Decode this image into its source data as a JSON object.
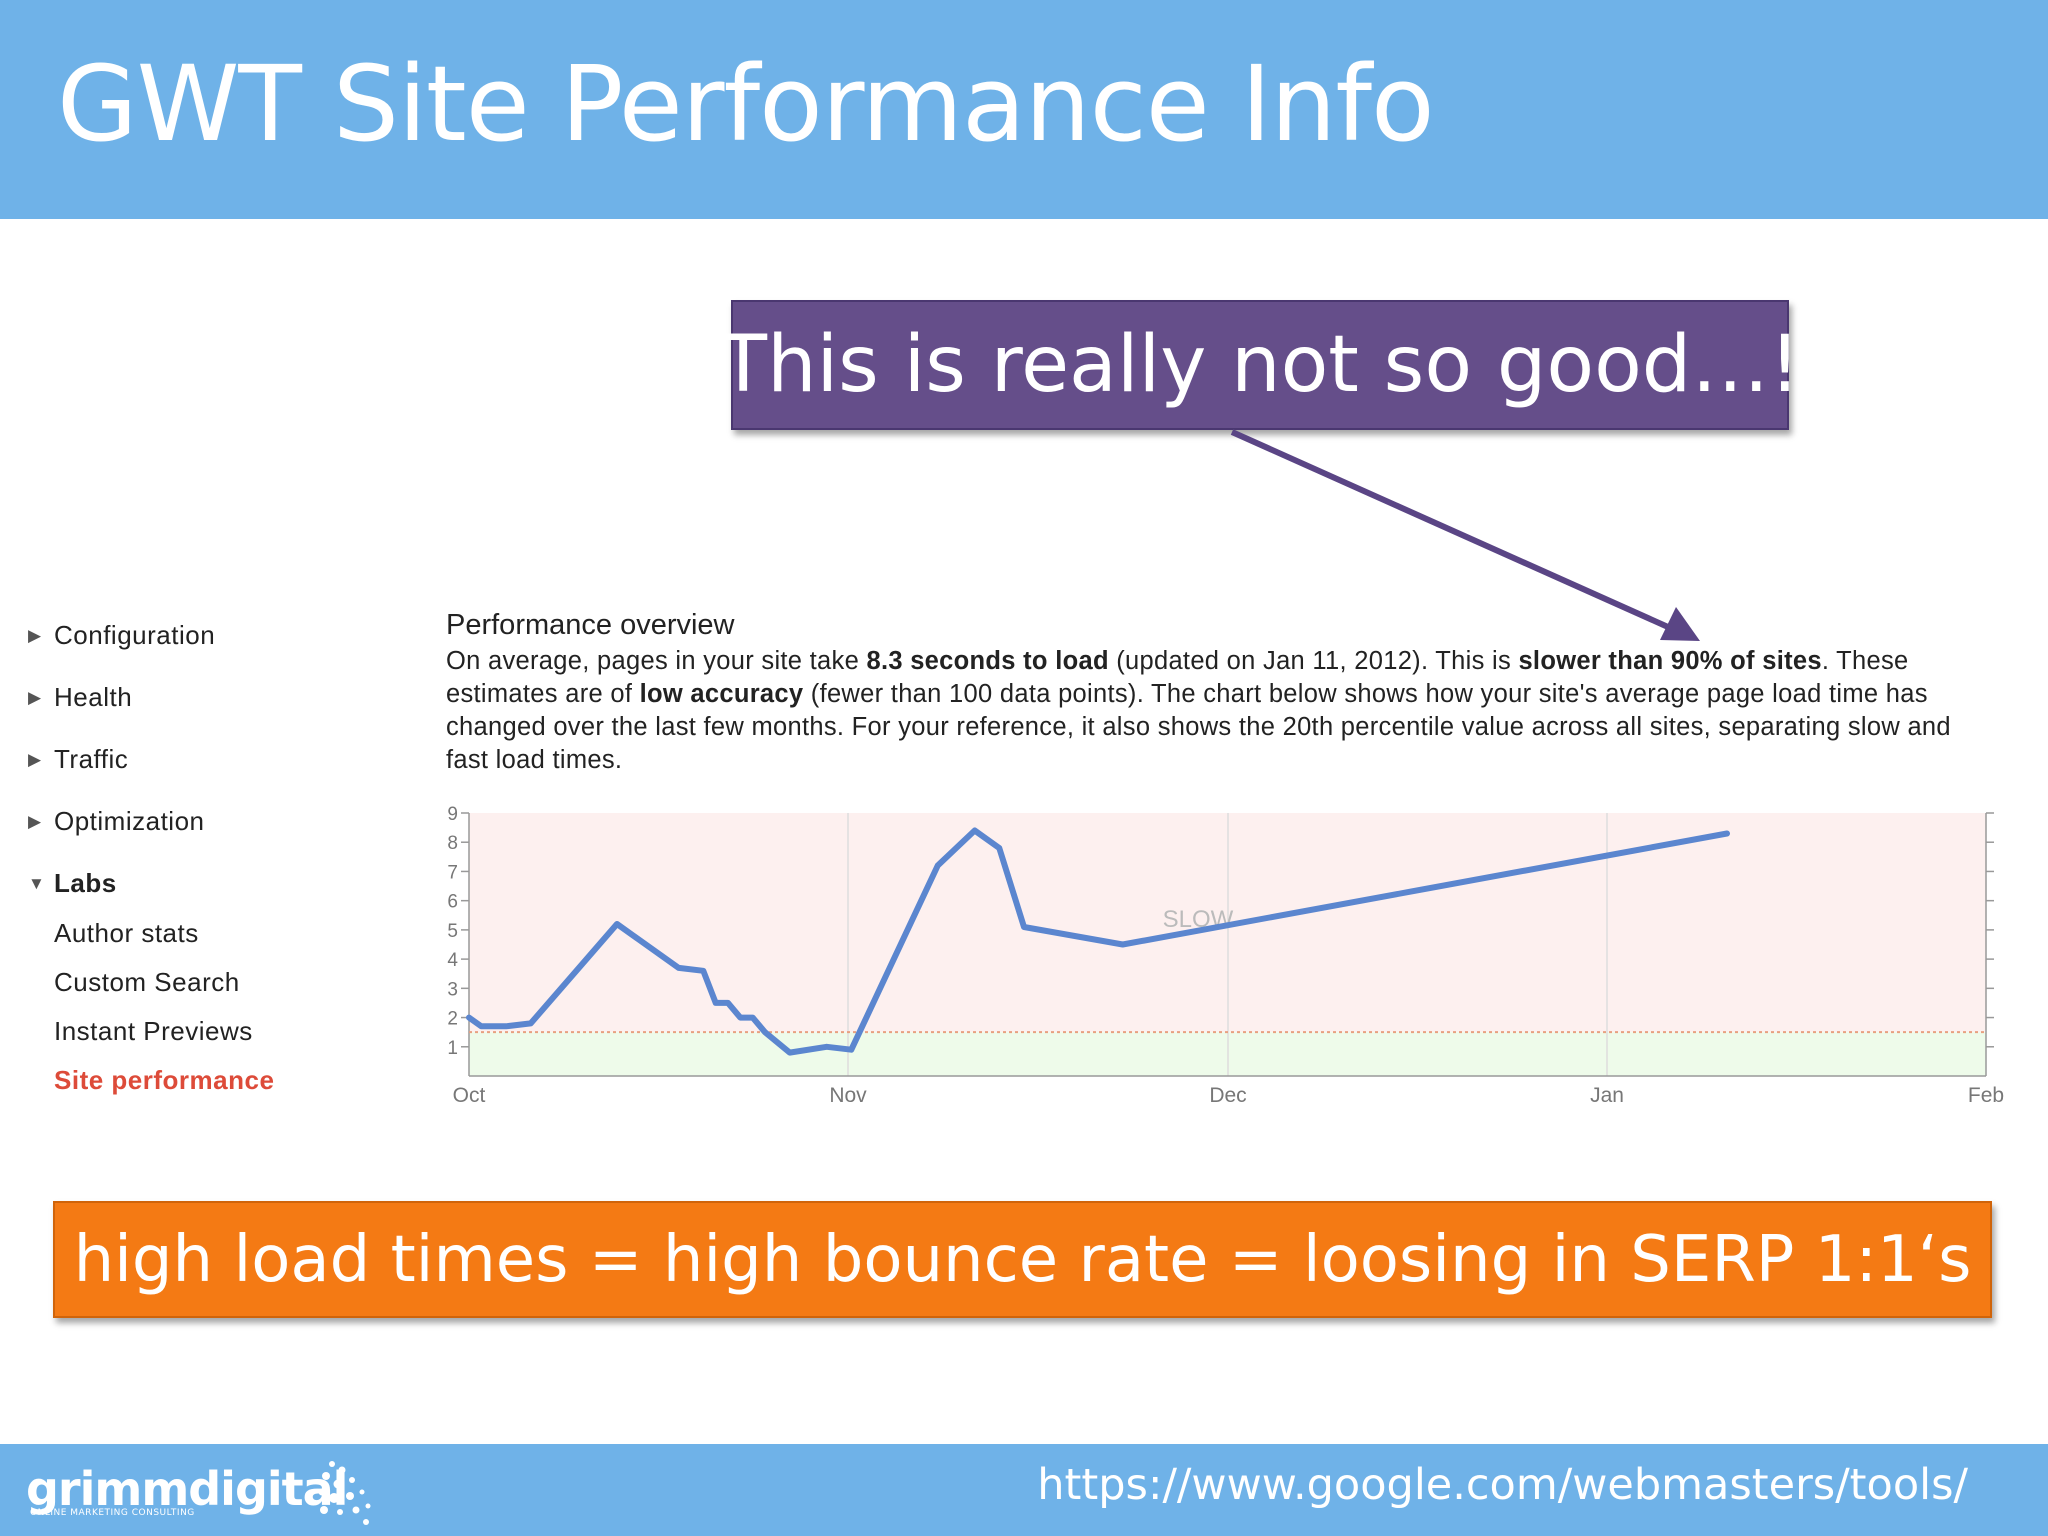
{
  "slide": {
    "title": "GWT Site Performance Info",
    "callout": "This is really not so good…!",
    "banner": "high load times = high bounce rate = loosing in SERP 1:1‘s",
    "footer_url": "https://www.google.com/webmasters/tools/"
  },
  "logo": {
    "name": "grimmdigital",
    "tagline": "ONLINE MARKETING CONSULTING"
  },
  "sidebar": {
    "items": [
      {
        "label": "Configuration",
        "expanded": false
      },
      {
        "label": "Health",
        "expanded": false
      },
      {
        "label": "Traffic",
        "expanded": false
      },
      {
        "label": "Optimization",
        "expanded": false
      },
      {
        "label": "Labs",
        "expanded": true
      }
    ],
    "sub_items": [
      {
        "label": "Author stats",
        "active": false
      },
      {
        "label": "Custom Search",
        "active": false
      },
      {
        "label": "Instant Previews",
        "active": false
      },
      {
        "label": "Site performance",
        "active": true
      }
    ]
  },
  "performance": {
    "title": "Performance overview",
    "desc": {
      "t1": "On average, pages in your site take ",
      "b1": "8.3 seconds to load",
      "t2": " (updated on Jan 11, 2012). This is ",
      "b2": "slower than 90% of sites",
      "t3": ". These estimates are of ",
      "b3": "low accuracy",
      "t4": " (fewer than 100 data points). The chart below shows how your site's average page load time has changed over the last few months. For your reference, it also shows the 20th percentile value across all sites, separating slow and fast load times."
    }
  },
  "colors": {
    "header": "#6fb2e8",
    "callout": "#654e8a",
    "banner": "#f47a14",
    "line": "#5b86cf",
    "slow_zone": "#fdf0ef",
    "fast_zone": "#eefbea",
    "threshold": "#e8a080"
  },
  "chart_data": {
    "type": "line",
    "xlabels": [
      "Oct",
      "Nov",
      "Dec",
      "Jan",
      "Feb"
    ],
    "ylim": [
      0,
      9
    ],
    "yticks": [
      1,
      2,
      3,
      4,
      5,
      6,
      7,
      8,
      9
    ],
    "zone_label": "SLOW",
    "threshold": 1.5,
    "grid": true,
    "series": [
      {
        "x": [
          "Oct 1",
          "Oct 2",
          "Oct 4",
          "Oct 6",
          "Oct 13",
          "Oct 18",
          "Oct 20",
          "Oct 21",
          "Oct 22",
          "Oct 23",
          "Oct 24",
          "Oct 25",
          "Oct 27",
          "Oct 30",
          "Nov 1",
          "Nov 8",
          "Nov 11",
          "Nov 13",
          "Nov 15",
          "Nov 23",
          "Jan 11"
        ],
        "y": [
          2.0,
          1.7,
          1.7,
          1.8,
          5.2,
          3.7,
          3.6,
          2.5,
          2.5,
          2.0,
          2.0,
          1.5,
          0.8,
          1.0,
          0.9,
          7.2,
          8.4,
          7.8,
          5.1,
          4.5,
          8.3
        ]
      }
    ]
  }
}
